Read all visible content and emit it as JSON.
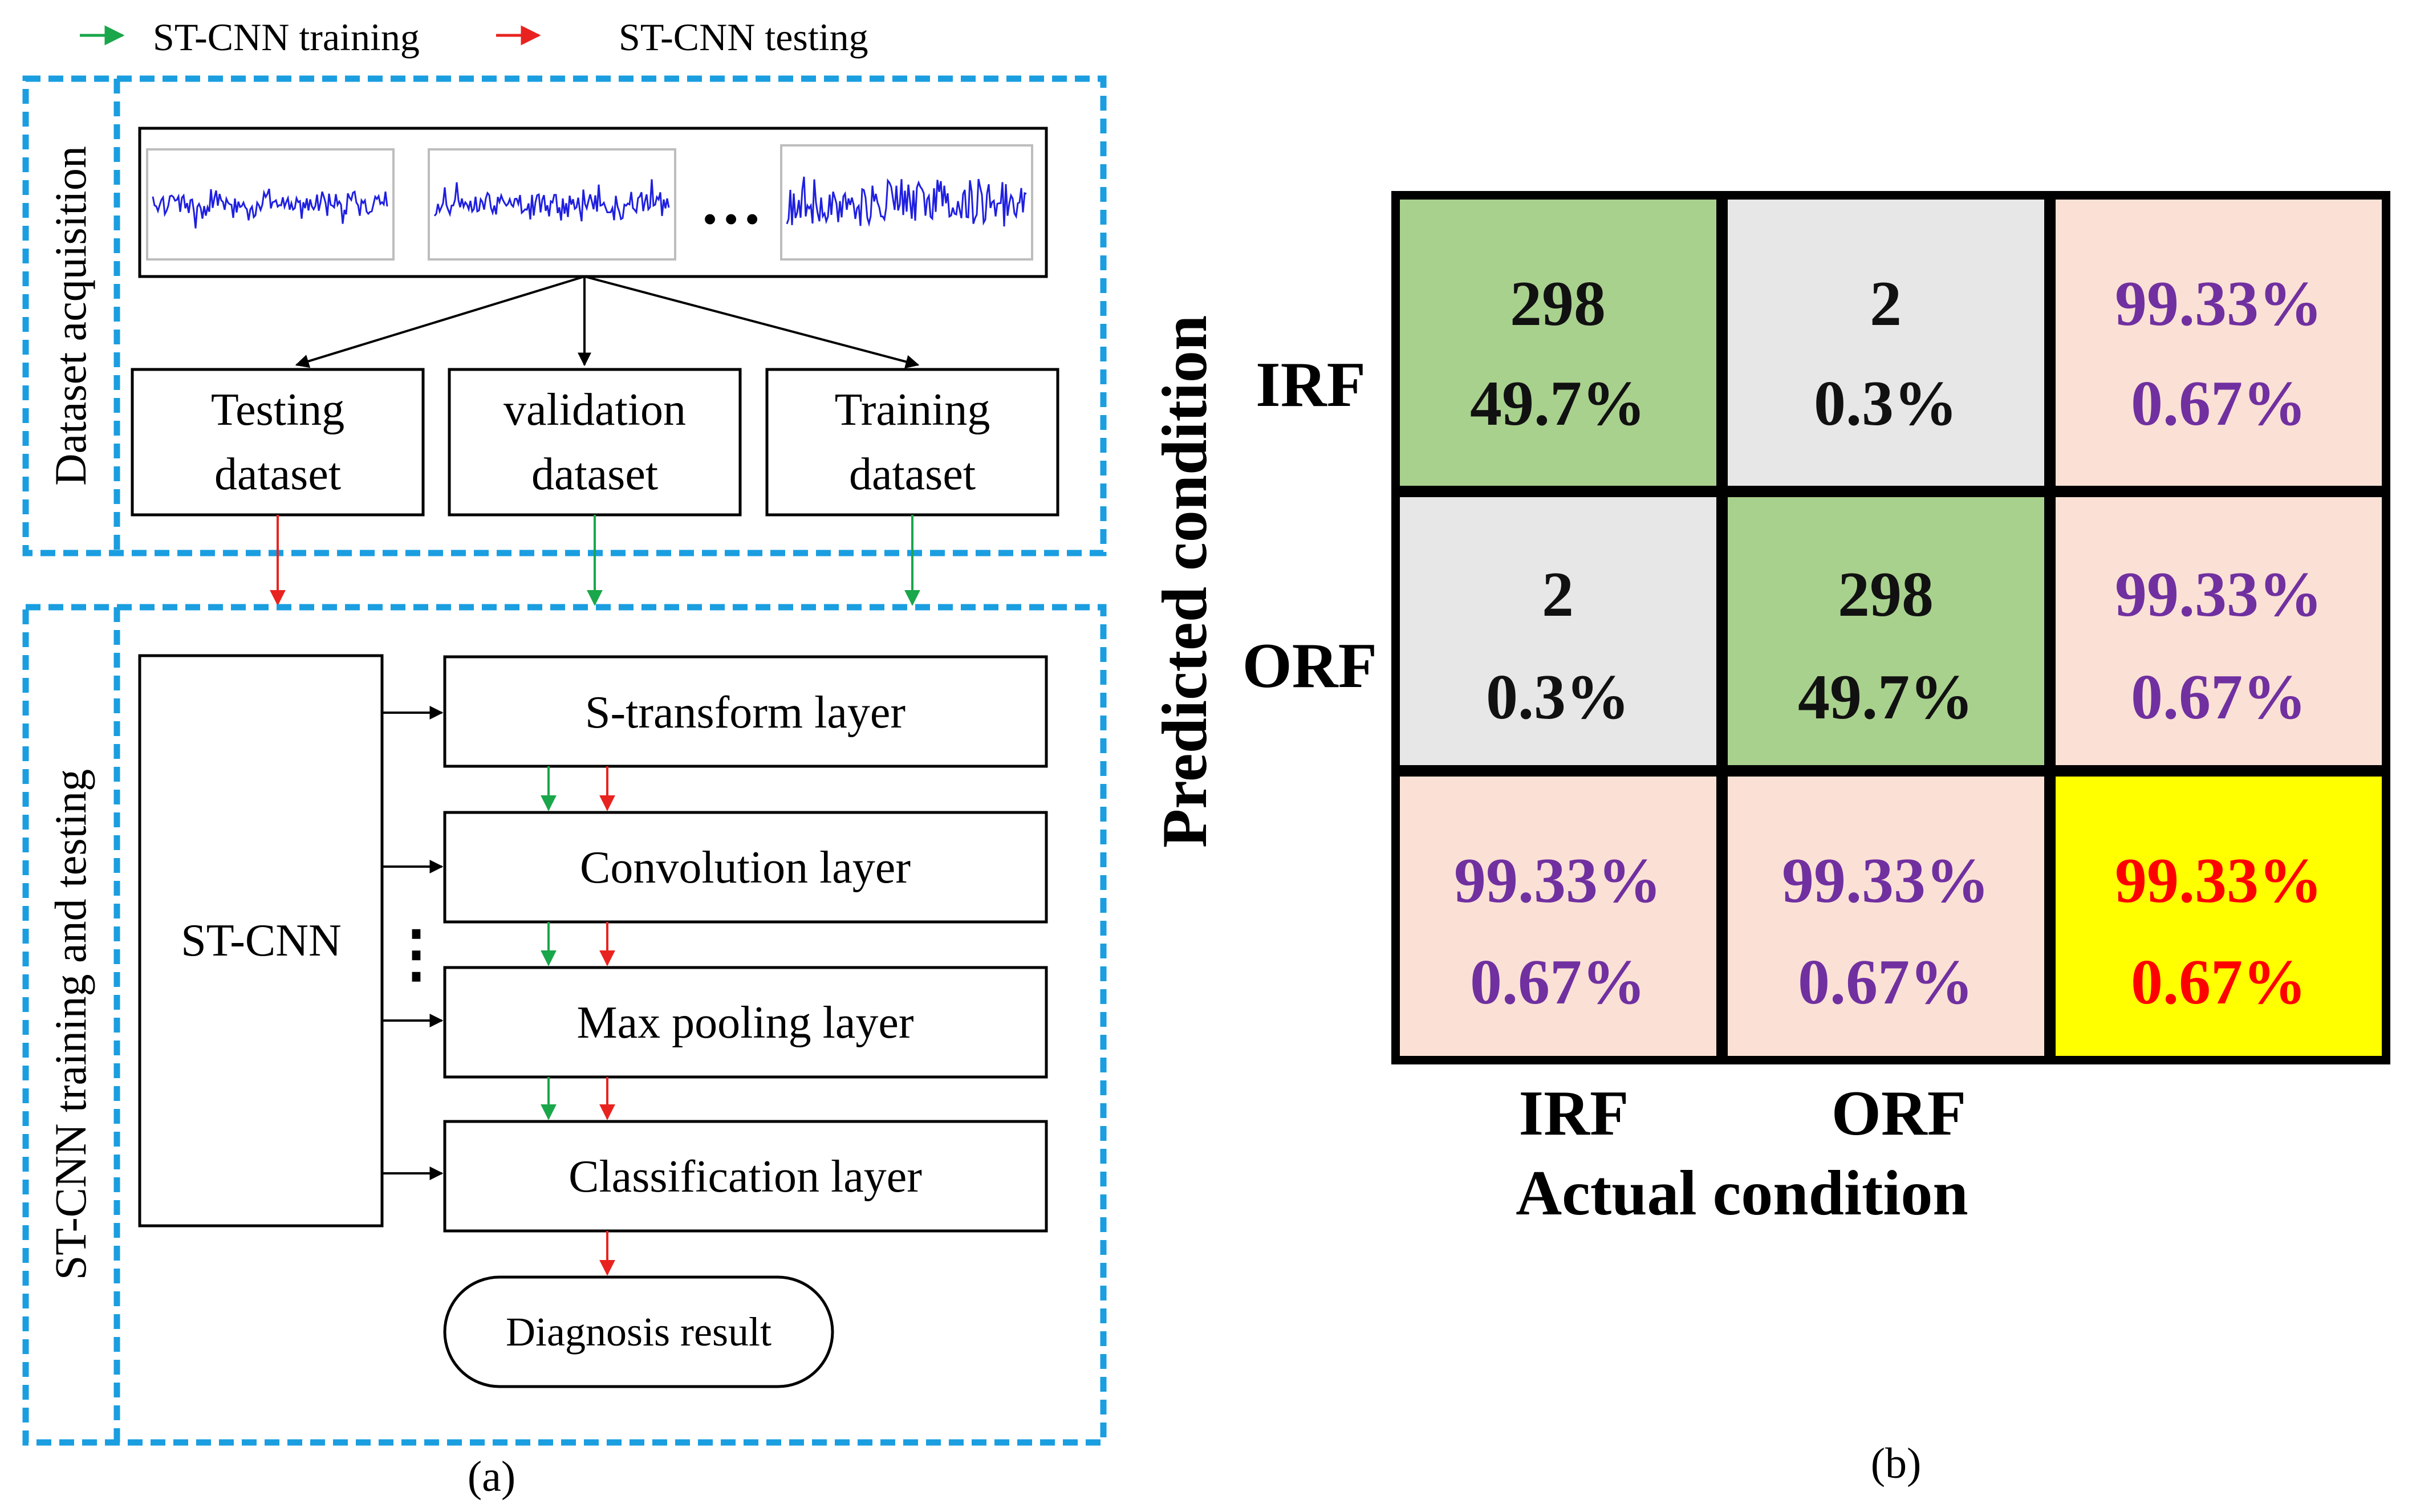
{
  "legend": {
    "training_label": "ST-CNN training",
    "testing_label": "ST-CNN testing",
    "training_color": "#1aa64a",
    "testing_color": "#e8231f"
  },
  "panel_a": {
    "caption": "(a)",
    "section_acquisition_label": "Dataset  acquisition",
    "section_training_label": "ST-CNN training and testing",
    "signal_ellipsis": "…",
    "dataset_boxes": [
      {
        "line1": "Testing",
        "line2": "dataset"
      },
      {
        "line1": "validation",
        "line2": "dataset"
      },
      {
        "line1": "Training",
        "line2": "dataset"
      }
    ],
    "stcnn_label": "ST-CNN",
    "layers": [
      "S-transform layer",
      "Convolution layer",
      "Max pooling layer",
      "Classification layer"
    ],
    "vertical_ellipsis": "⋮",
    "result_label": "Diagnosis result",
    "dashed_color": "#1a9ee0",
    "signal_color": "#1f1fe0"
  },
  "panel_b": {
    "caption": "(b)",
    "y_axis_label": "Predicted condition",
    "x_axis_label": "Actual condition",
    "row_labels": [
      "IRF",
      "ORF"
    ],
    "col_labels": [
      "IRF",
      "ORF"
    ],
    "cells": [
      [
        {
          "v1": "298",
          "v2": "49.7%"
        },
        {
          "v1": "2",
          "v2": "0.3%"
        },
        {
          "v1": "99.33%",
          "v2": "0.67%"
        }
      ],
      [
        {
          "v1": "2",
          "v2": "0.3%"
        },
        {
          "v1": "298",
          "v2": "49.7%"
        },
        {
          "v1": "99.33%",
          "v2": "0.67%"
        }
      ],
      [
        {
          "v1": "99.33%",
          "v2": "0.67%"
        },
        {
          "v1": "99.33%",
          "v2": "0.67%"
        },
        {
          "v1": "99.33%",
          "v2": "0.67%"
        }
      ]
    ],
    "colors": {
      "diagonal": "#a9d18e",
      "offdiagonal": "#e7e7e7",
      "summary": "#fbe1d5",
      "overall": "#ffff00",
      "count_text": "#111111",
      "percent_text": "#7030a0",
      "overall_text": "#ff0000"
    }
  }
}
